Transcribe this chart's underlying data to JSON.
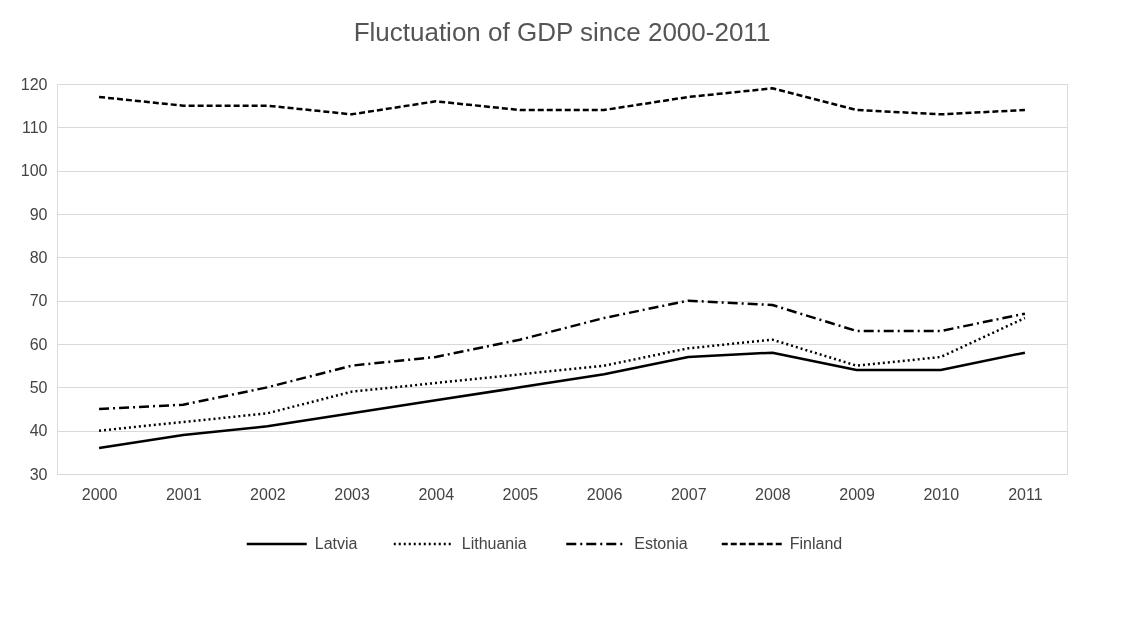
{
  "chart_data": {
    "type": "line",
    "title": "Fluctuation of GDP since 2000-2011",
    "categories": [
      "2000",
      "2001",
      "2002",
      "2003",
      "2004",
      "2005",
      "2006",
      "2007",
      "2008",
      "2009",
      "2010",
      "2011"
    ],
    "series": [
      {
        "name": "Latvia",
        "color": "#000000",
        "line_style": "solid",
        "values": [
          36,
          39,
          41,
          44,
          47,
          50,
          53,
          57,
          58,
          54,
          54,
          58
        ]
      },
      {
        "name": "Lithuania",
        "color": "#000000",
        "line_style": "dotted",
        "values": [
          40,
          42,
          44,
          49,
          51,
          53,
          55,
          59,
          61,
          55,
          57,
          66
        ]
      },
      {
        "name": "Estonia",
        "color": "#000000",
        "line_style": "dashdot",
        "values": [
          45,
          46,
          50,
          55,
          57,
          61,
          66,
          70,
          69,
          63,
          63,
          67
        ]
      },
      {
        "name": "Finland",
        "color": "#000000",
        "line_style": "dashed",
        "values": [
          117,
          115,
          115,
          113,
          116,
          114,
          114,
          117,
          119,
          114,
          113,
          114
        ]
      }
    ],
    "ylim": [
      30,
      120
    ],
    "yticks": [
      30,
      40,
      50,
      60,
      70,
      80,
      90,
      100,
      110,
      120
    ],
    "grid": "y",
    "legend": "bottom",
    "marker": "none"
  }
}
